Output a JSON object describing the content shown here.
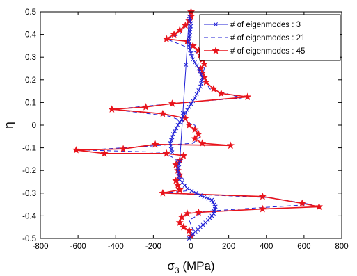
{
  "chart_data": {
    "type": "line",
    "xlabel": "σ",
    "xlabel_subscript": "3",
    "xlabel_unit": " (MPa)",
    "ylabel": "η",
    "xlim": [
      -800,
      800
    ],
    "ylim": [
      -0.5,
      0.5
    ],
    "xticks": [
      -800,
      -600,
      -400,
      -200,
      0,
      200,
      400,
      600,
      800
    ],
    "yticks": [
      -0.5,
      -0.4,
      -0.3,
      -0.2,
      -0.1,
      0,
      0.1,
      0.2,
      0.3,
      0.4,
      0.5
    ],
    "xtick_labels": [
      "-800",
      "-600",
      "-400",
      "-200",
      "0",
      "200",
      "400",
      "600",
      "800"
    ],
    "ytick_labels": [
      "-0.5",
      "-0.4",
      "-0.3",
      "-0.2",
      "-0.1",
      "0",
      "0.1",
      "0.2",
      "0.3",
      "0.4",
      "0.5"
    ],
    "grid": false,
    "legend_position": "top-right",
    "series": [
      {
        "name": "# of eigenmodes : 3",
        "color": "#1f1fd6",
        "line": "solid",
        "marker": "x",
        "points": [
          [
            -60,
            -0.16
          ],
          [
            -70,
            -0.2
          ],
          [
            -60,
            -0.24
          ],
          [
            -20,
            -0.28
          ],
          [
            50,
            -0.31
          ],
          [
            110,
            -0.33
          ],
          [
            130,
            -0.36
          ],
          [
            120,
            -0.39
          ],
          [
            90,
            -0.42
          ],
          [
            50,
            -0.45
          ],
          [
            10,
            -0.48
          ],
          [
            -10,
            -0.5
          ]
        ],
        "points_upper": [
          [
            -100,
            -0.12
          ],
          [
            -110,
            -0.08
          ],
          [
            -95,
            -0.04
          ],
          [
            -70,
            0.0
          ],
          [
            -40,
            0.04
          ],
          [
            -10,
            0.08
          ],
          [
            20,
            0.12
          ],
          [
            50,
            0.17
          ],
          [
            60,
            0.21
          ],
          [
            40,
            0.25
          ],
          [
            10,
            0.29
          ],
          [
            -5,
            0.33
          ],
          [
            -10,
            0.37
          ],
          [
            -5,
            0.41
          ],
          [
            0,
            0.45
          ],
          [
            -10,
            0.48
          ]
        ]
      },
      {
        "name": "# of eigenmodes : 21",
        "color": "#1f1fd6",
        "line": "dashed",
        "marker": "none",
        "points": [
          [
            0,
            0.5
          ],
          [
            -10,
            0.46
          ],
          [
            -60,
            0.4
          ],
          [
            -130,
            0.38
          ],
          [
            -40,
            0.35
          ],
          [
            30,
            0.32
          ],
          [
            60,
            0.3
          ],
          [
            70,
            0.25
          ],
          [
            60,
            0.21
          ],
          [
            100,
            0.16
          ],
          [
            270,
            0.12
          ],
          [
            -30,
            0.1
          ],
          [
            -420,
            0.07
          ],
          [
            -120,
            0.04
          ],
          [
            20,
            0.0
          ],
          [
            50,
            -0.05
          ],
          [
            10,
            -0.08
          ],
          [
            -360,
            -0.1
          ],
          [
            -560,
            -0.11
          ],
          [
            -150,
            -0.12
          ],
          [
            -80,
            -0.15
          ],
          [
            -70,
            -0.19
          ],
          [
            -40,
            -0.24
          ],
          [
            -20,
            -0.29
          ],
          [
            -150,
            -0.3
          ],
          [
            420,
            -0.32
          ],
          [
            640,
            -0.35
          ],
          [
            70,
            -0.38
          ],
          [
            -10,
            -0.42
          ],
          [
            10,
            -0.46
          ],
          [
            0,
            -0.5
          ]
        ]
      },
      {
        "name": "# of eigenmodes : 45",
        "color": "#e8141c",
        "line": "solid",
        "marker": "star",
        "points": [
          [
            0,
            0.5
          ],
          [
            0,
            0.48
          ],
          [
            -10,
            0.46
          ],
          [
            -30,
            0.44
          ],
          [
            -60,
            0.42
          ],
          [
            -90,
            0.4
          ],
          [
            -130,
            0.38
          ],
          [
            -20,
            0.37
          ],
          [
            10,
            0.35
          ],
          [
            40,
            0.33
          ],
          [
            50,
            0.31
          ],
          [
            60,
            0.29
          ],
          [
            70,
            0.27
          ],
          [
            50,
            0.25
          ],
          [
            60,
            0.23
          ],
          [
            70,
            0.21
          ],
          [
            80,
            0.19
          ],
          [
            120,
            0.16
          ],
          [
            160,
            0.14
          ],
          [
            300,
            0.125
          ],
          [
            -100,
            0.095
          ],
          [
            -240,
            0.08
          ],
          [
            -420,
            0.07
          ],
          [
            -150,
            0.05
          ],
          [
            -30,
            0.03
          ],
          [
            -10,
            0.0
          ],
          [
            20,
            -0.02
          ],
          [
            40,
            -0.04
          ],
          [
            20,
            -0.06
          ],
          [
            60,
            -0.08
          ],
          [
            210,
            -0.09
          ],
          [
            -190,
            -0.085
          ],
          [
            -360,
            -0.105
          ],
          [
            -610,
            -0.11
          ],
          [
            -460,
            -0.125
          ],
          [
            -130,
            -0.125
          ],
          [
            -40,
            -0.135
          ],
          [
            -60,
            -0.155
          ],
          [
            -80,
            -0.175
          ],
          [
            -70,
            -0.2
          ],
          [
            -60,
            -0.22
          ],
          [
            -80,
            -0.245
          ],
          [
            -70,
            -0.265
          ],
          [
            -60,
            -0.285
          ],
          [
            -150,
            -0.3
          ],
          [
            380,
            -0.315
          ],
          [
            590,
            -0.345
          ],
          [
            680,
            -0.36
          ],
          [
            380,
            -0.37
          ],
          [
            40,
            -0.385
          ],
          [
            -20,
            -0.39
          ],
          [
            -50,
            -0.405
          ],
          [
            -60,
            -0.43
          ],
          [
            -40,
            -0.45
          ],
          [
            -10,
            -0.465
          ],
          [
            0,
            -0.49
          ]
        ]
      }
    ]
  }
}
